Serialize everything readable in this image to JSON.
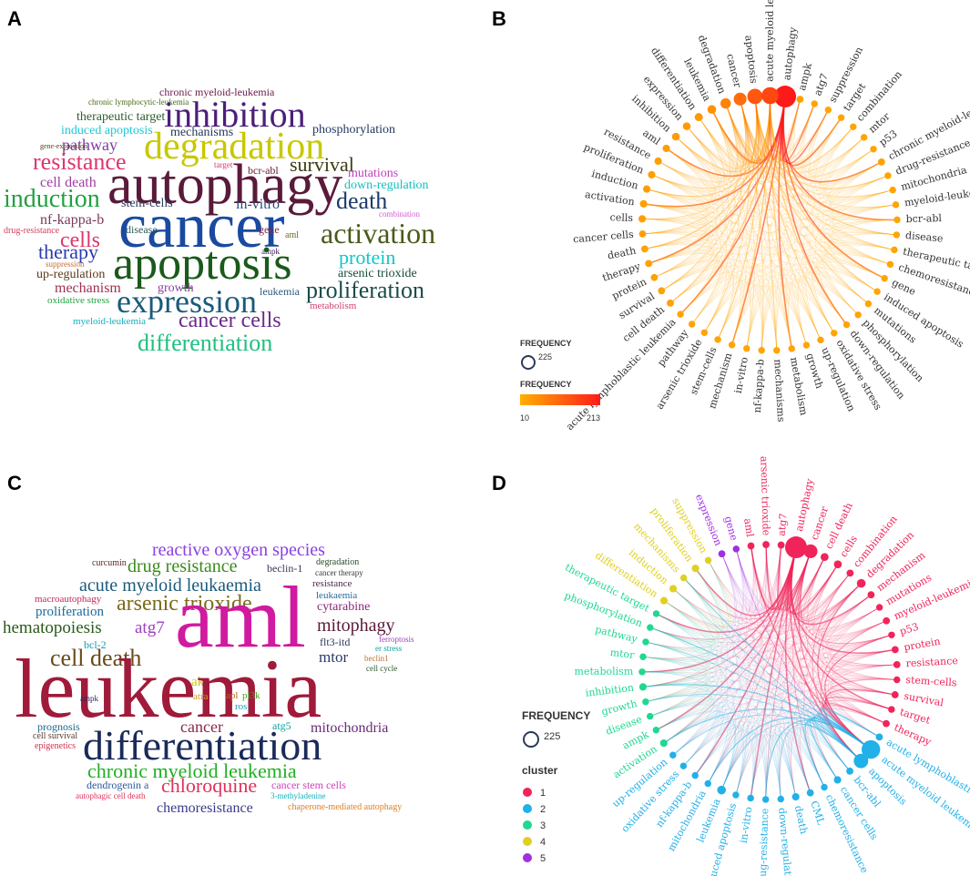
{
  "panels": {
    "a": {
      "letter": "A",
      "words": [
        {
          "text": "chronic myeloid-leukemia",
          "color": "#6a1b4d"
        },
        {
          "text": "chronic lymphocytic-leukemia",
          "color": "#4c6b1a"
        },
        {
          "text": "inhibition",
          "color": "#4b1f7a"
        },
        {
          "text": "therapeutic target",
          "color": "#2e5d2e"
        },
        {
          "text": "induced apoptosis",
          "color": "#1ec8d8"
        },
        {
          "text": "mechanisms",
          "color": "#23395d"
        },
        {
          "text": "phosphorylation",
          "color": "#23395d"
        },
        {
          "text": "degradation",
          "color": "#c8c800"
        },
        {
          "text": "pathway",
          "color": "#7b3fa0"
        },
        {
          "text": "resistance",
          "color": "#e0356b"
        },
        {
          "text": "gene-expression",
          "color": "#5a3e1b"
        },
        {
          "text": "target",
          "color": "#e0356b"
        },
        {
          "text": "bcr-abl",
          "color": "#6a1b2d"
        },
        {
          "text": "survival",
          "color": "#3c3c10"
        },
        {
          "text": "autophagy",
          "color": "#5a1a3a"
        },
        {
          "text": "mutations",
          "color": "#c040c0"
        },
        {
          "text": "induction",
          "color": "#20a040"
        },
        {
          "text": "cell death",
          "color": "#a040a0"
        },
        {
          "text": "stem-cells",
          "color": "#2a3a5a"
        },
        {
          "text": "down-regulation",
          "color": "#10c0c0"
        },
        {
          "text": "in-vitro",
          "color": "#2a4a7a"
        },
        {
          "text": "death",
          "color": "#1a3a6a"
        },
        {
          "text": "nf-kappa-b",
          "color": "#7a3a5a"
        },
        {
          "text": "combination",
          "color": "#d060d0"
        },
        {
          "text": "drug-resistance",
          "color": "#d04060"
        },
        {
          "text": "cancer",
          "color": "#1a4aa0"
        },
        {
          "text": "disease",
          "color": "#2a5a5a"
        },
        {
          "text": "gene",
          "color": "#7a2a4a"
        },
        {
          "text": "aml",
          "color": "#6a6a2a"
        },
        {
          "text": "activation",
          "color": "#4a5a1a"
        },
        {
          "text": "cells",
          "color": "#e0356b"
        },
        {
          "text": "suppression",
          "color": "#c07030"
        },
        {
          "text": "therapy",
          "color": "#2a3ab0"
        },
        {
          "text": "ampk",
          "color": "#3a1a5a"
        },
        {
          "text": "protein",
          "color": "#10c8c8"
        },
        {
          "text": "up-regulation",
          "color": "#5a3a1a"
        },
        {
          "text": "apoptosis",
          "color": "#1a5a1a"
        },
        {
          "text": "arsenic trioxide",
          "color": "#1a4a3a"
        },
        {
          "text": "mechanism",
          "color": "#a03050"
        },
        {
          "text": "growth",
          "color": "#8a40a0"
        },
        {
          "text": "leukemia",
          "color": "#2a5a7a"
        },
        {
          "text": "proliferation",
          "color": "#1a4a4a"
        },
        {
          "text": "oxidative stress",
          "color": "#20a040"
        },
        {
          "text": "expression",
          "color": "#1a5a7a"
        },
        {
          "text": "metabolism",
          "color": "#d04070"
        },
        {
          "text": "myeloid-leukemia",
          "color": "#10b0c0"
        },
        {
          "text": "cancer cells",
          "color": "#6a2a8a"
        },
        {
          "text": "differentiation",
          "color": "#20c080"
        }
      ]
    },
    "b": {
      "letter": "B",
      "nodes": [
        {
          "label": "autophagy",
          "w": 1.0
        },
        {
          "label": "ampk",
          "w": 0.1
        },
        {
          "label": "atg7",
          "w": 0.08
        },
        {
          "label": "suppression",
          "w": 0.08
        },
        {
          "label": "target",
          "w": 0.08
        },
        {
          "label": "combination",
          "w": 0.08
        },
        {
          "label": "mtor",
          "w": 0.08
        },
        {
          "label": "p53",
          "w": 0.08
        },
        {
          "label": "chronic myeloid-leukemia",
          "w": 0.1
        },
        {
          "label": "drug-resistance",
          "w": 0.08
        },
        {
          "label": "mitochondria",
          "w": 0.08
        },
        {
          "label": "myeloid-leukemia",
          "w": 0.08
        },
        {
          "label": "bcr-abl",
          "w": 0.08
        },
        {
          "label": "disease",
          "w": 0.08
        },
        {
          "label": "therapeutic target",
          "w": 0.08
        },
        {
          "label": "chemoresistance",
          "w": 0.08
        },
        {
          "label": "gene",
          "w": 0.08
        },
        {
          "label": "induced apoptosis",
          "w": 0.08
        },
        {
          "label": "mutations",
          "w": 0.08
        },
        {
          "label": "phosphorylation",
          "w": 0.08
        },
        {
          "label": "down-regulation",
          "w": 0.08
        },
        {
          "label": "oxidative stress",
          "w": 0.08
        },
        {
          "label": "up-regulation",
          "w": 0.08
        },
        {
          "label": "growth",
          "w": 0.08
        },
        {
          "label": "metabolism",
          "w": 0.08
        },
        {
          "label": "mechanisms",
          "w": 0.08
        },
        {
          "label": "nf-kappa-b",
          "w": 0.08
        },
        {
          "label": "in-vitro",
          "w": 0.08
        },
        {
          "label": "mechanism",
          "w": 0.08
        },
        {
          "label": "stem-cells",
          "w": 0.08
        },
        {
          "label": "arsenic trioxide",
          "w": 0.08
        },
        {
          "label": "pathway",
          "w": 0.08
        },
        {
          "label": "acute lymphoblastic leukemia",
          "w": 0.08
        },
        {
          "label": "cell death",
          "w": 0.1
        },
        {
          "label": "survival",
          "w": 0.1
        },
        {
          "label": "protein",
          "w": 0.1
        },
        {
          "label": "therapy",
          "w": 0.1
        },
        {
          "label": "death",
          "w": 0.1
        },
        {
          "label": "cancer cells",
          "w": 0.1
        },
        {
          "label": "cells",
          "w": 0.12
        },
        {
          "label": "activation",
          "w": 0.12
        },
        {
          "label": "induction",
          "w": 0.12
        },
        {
          "label": "proliferation",
          "w": 0.12
        },
        {
          "label": "resistance",
          "w": 0.12
        },
        {
          "label": "aml",
          "w": 0.12
        },
        {
          "label": "inhibition",
          "w": 0.14
        },
        {
          "label": "expression",
          "w": 0.14
        },
        {
          "label": "differentiation",
          "w": 0.16
        },
        {
          "label": "leukemia",
          "w": 0.2
        },
        {
          "label": "degradation",
          "w": 0.3
        },
        {
          "label": "cancer",
          "w": 0.45
        },
        {
          "label": "apoptosis",
          "w": 0.6
        },
        {
          "label": "acute myeloid leukemia",
          "w": 0.7
        }
      ],
      "legend": {
        "size_title": "FREQUENCY",
        "size_value": "225",
        "color_title": "FREQUENCY",
        "color_min": "10",
        "color_max": "213",
        "color_low": "#ffb000",
        "color_high": "#ff1a1a"
      }
    },
    "c": {
      "letter": "C",
      "words": [
        {
          "text": "reactive oxygen species",
          "color": "#8a40e0"
        },
        {
          "text": "curcumin",
          "color": "#5a2a2a"
        },
        {
          "text": "drug resistance",
          "color": "#3a8a1a"
        },
        {
          "text": "beclin-1",
          "color": "#3a3a5a"
        },
        {
          "text": "degradation",
          "color": "#2a4a2a"
        },
        {
          "text": "cancer therapy",
          "color": "#3a3a3a"
        },
        {
          "text": "acute myeloid leukaemia",
          "color": "#1a5a7a"
        },
        {
          "text": "resistance",
          "color": "#4a2a4a"
        },
        {
          "text": "macroautophagy",
          "color": "#c02a5a"
        },
        {
          "text": "leukaemia",
          "color": "#2a6a9a"
        },
        {
          "text": "proliferation",
          "color": "#1a6a9a"
        },
        {
          "text": "arsenic trioxide",
          "color": "#7a6a1a"
        },
        {
          "text": "cytarabine",
          "color": "#8a2a7a"
        },
        {
          "text": "hematopoiesis",
          "color": "#2a5a1a"
        },
        {
          "text": "atg7",
          "color": "#9a40c0"
        },
        {
          "text": "mitophagy",
          "color": "#5a1a3a"
        },
        {
          "text": "bcl-2",
          "color": "#10a0b0"
        },
        {
          "text": "aml",
          "color": "#d01aa0"
        },
        {
          "text": "flt3-itd",
          "color": "#2a3a5a"
        },
        {
          "text": "ferroptosis",
          "color": "#a040c0"
        },
        {
          "text": "cell death",
          "color": "#6a4a1a"
        },
        {
          "text": "er stress",
          "color": "#10a0a0"
        },
        {
          "text": "beclin1",
          "color": "#c07030"
        },
        {
          "text": "mtor",
          "color": "#2a3a6a"
        },
        {
          "text": "cell cycle",
          "color": "#2a5a2a"
        },
        {
          "text": "akt",
          "color": "#c8c820"
        },
        {
          "text": "leukemia",
          "color": "#a01a3a"
        },
        {
          "text": "ampk",
          "color": "#2a2a5a"
        },
        {
          "text": "atra",
          "color": "#c8a020"
        },
        {
          "text": "apl",
          "color": "#c06020"
        },
        {
          "text": "pi3k",
          "color": "#40a020"
        },
        {
          "text": "ros",
          "color": "#10a0c0"
        },
        {
          "text": "prognosis",
          "color": "#1a6a8a"
        },
        {
          "text": "cancer",
          "color": "#8a2a4a"
        },
        {
          "text": "atg5",
          "color": "#10a0a0"
        },
        {
          "text": "cell survival",
          "color": "#5a3a2a"
        },
        {
          "text": "mitochondria",
          "color": "#6a2a7a"
        },
        {
          "text": "differentiation",
          "color": "#1a2a5a"
        },
        {
          "text": "epigenetics",
          "color": "#d0304a"
        },
        {
          "text": "chronic myeloid leukemia",
          "color": "#20b020"
        },
        {
          "text": "dendrogenin a",
          "color": "#2a5aa0"
        },
        {
          "text": "chloroquine",
          "color": "#e0305a"
        },
        {
          "text": "cancer stem cells",
          "color": "#d040c0"
        },
        {
          "text": "autophagic cell death",
          "color": "#e0305a"
        },
        {
          "text": "3-methyladenine",
          "color": "#10b0c0"
        },
        {
          "text": "chemoresistance",
          "color": "#3a3a8a"
        },
        {
          "text": "chaperone-mediated autophagy",
          "color": "#e08020"
        }
      ]
    },
    "d": {
      "letter": "D",
      "nodes": [
        {
          "label": "expression",
          "c": 5,
          "w": 0.1
        },
        {
          "label": "gene",
          "c": 5,
          "w": 0.08
        },
        {
          "label": "aml",
          "c": 1,
          "w": 0.1
        },
        {
          "label": "arsenic trioxide",
          "c": 1,
          "w": 0.1
        },
        {
          "label": "atg7",
          "c": 1,
          "w": 0.1
        },
        {
          "label": "autophagy",
          "c": 1,
          "w": 1.0
        },
        {
          "label": "cancer",
          "c": 1,
          "w": 0.5
        },
        {
          "label": "cell death",
          "c": 1,
          "w": 0.15
        },
        {
          "label": "cells",
          "c": 1,
          "w": 0.15
        },
        {
          "label": "combination",
          "c": 1,
          "w": 0.1
        },
        {
          "label": "degradation",
          "c": 1,
          "w": 0.2
        },
        {
          "label": "mechanism",
          "c": 1,
          "w": 0.1
        },
        {
          "label": "mutations",
          "c": 1,
          "w": 0.08
        },
        {
          "label": "myeloid-leukemia",
          "c": 1,
          "w": 0.1
        },
        {
          "label": "p53",
          "c": 1,
          "w": 0.08
        },
        {
          "label": "protein",
          "c": 1,
          "w": 0.1
        },
        {
          "label": "resistance",
          "c": 1,
          "w": 0.1
        },
        {
          "label": "stem-cells",
          "c": 1,
          "w": 0.08
        },
        {
          "label": "survival",
          "c": 1,
          "w": 0.1
        },
        {
          "label": "target",
          "c": 1,
          "w": 0.08
        },
        {
          "label": "therapy",
          "c": 1,
          "w": 0.1
        },
        {
          "label": "acute lymphoblastic leukemia",
          "c": 2,
          "w": 0.1
        },
        {
          "label": "acute myeloid leukemia",
          "c": 2,
          "w": 0.8
        },
        {
          "label": "apoptosis",
          "c": 2,
          "w": 0.55
        },
        {
          "label": "bcr-abl",
          "c": 2,
          "w": 0.1
        },
        {
          "label": "cancer cells",
          "c": 2,
          "w": 0.12
        },
        {
          "label": "chemoresistance",
          "c": 2,
          "w": 0.08
        },
        {
          "label": "CML",
          "c": 2,
          "w": 0.1
        },
        {
          "label": "death",
          "c": 2,
          "w": 0.12
        },
        {
          "label": "down-regulation",
          "c": 2,
          "w": 0.08
        },
        {
          "label": "drug-resistance",
          "c": 2,
          "w": 0.08
        },
        {
          "label": "in-vitro",
          "c": 2,
          "w": 0.08
        },
        {
          "label": "induced apoptosis",
          "c": 2,
          "w": 0.08
        },
        {
          "label": "leukemia",
          "c": 2,
          "w": 0.2
        },
        {
          "label": "mitochondria",
          "c": 2,
          "w": 0.08
        },
        {
          "label": "nf-kappa-b",
          "c": 2,
          "w": 0.08
        },
        {
          "label": "oxidative stress",
          "c": 2,
          "w": 0.08
        },
        {
          "label": "up-regulation",
          "c": 2,
          "w": 0.08
        },
        {
          "label": "activation",
          "c": 3,
          "w": 0.12
        },
        {
          "label": "ampk",
          "c": 3,
          "w": 0.08
        },
        {
          "label": "disease",
          "c": 3,
          "w": 0.08
        },
        {
          "label": "growth",
          "c": 3,
          "w": 0.08
        },
        {
          "label": "inhibition",
          "c": 3,
          "w": 0.12
        },
        {
          "label": "metabolism",
          "c": 3,
          "w": 0.08
        },
        {
          "label": "mtor",
          "c": 3,
          "w": 0.08
        },
        {
          "label": "pathway",
          "c": 3,
          "w": 0.08
        },
        {
          "label": "phosphorylation",
          "c": 3,
          "w": 0.08
        },
        {
          "label": "therapeutic target",
          "c": 3,
          "w": 0.08
        },
        {
          "label": "differentiation",
          "c": 4,
          "w": 0.12
        },
        {
          "label": "induction",
          "c": 4,
          "w": 0.12
        },
        {
          "label": "mechanisms",
          "c": 4,
          "w": 0.08
        },
        {
          "label": "proliferation",
          "c": 4,
          "w": 0.12
        },
        {
          "label": "suppression",
          "c": 4,
          "w": 0.08
        }
      ],
      "legend": {
        "size_title": "FREQUENCY",
        "size_value": "225",
        "cluster_title": "cluster",
        "clusters": [
          {
            "label": "1",
            "color": "#f0245a"
          },
          {
            "label": "2",
            "color": "#22b0e8"
          },
          {
            "label": "3",
            "color": "#20d890"
          },
          {
            "label": "4",
            "color": "#e0d020"
          },
          {
            "label": "5",
            "color": "#a030e0"
          }
        ]
      }
    }
  }
}
